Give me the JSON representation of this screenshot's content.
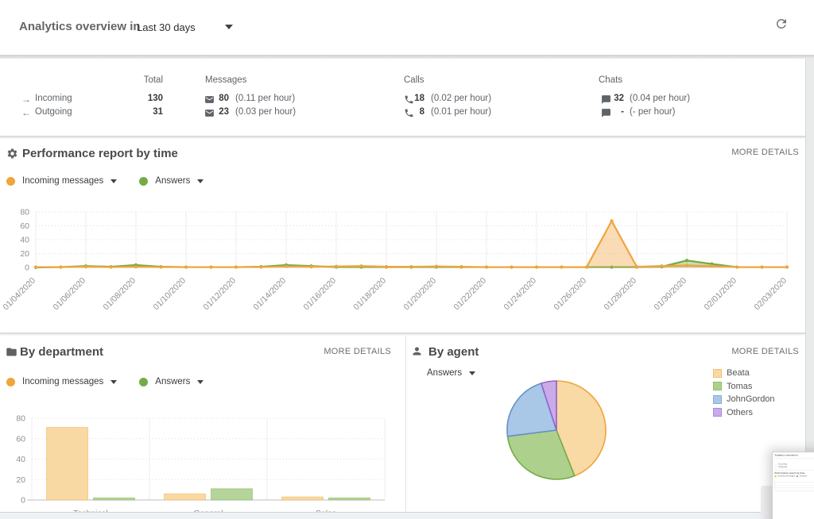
{
  "header": {
    "title": "Analytics overview in",
    "range_selector": {
      "value": "Last 30 days"
    },
    "refresh_icon": "refresh"
  },
  "stats": {
    "columns": {
      "total": "Total",
      "messages": "Messages",
      "calls": "Calls",
      "chats": "Chats"
    },
    "rows": [
      {
        "arrow": "→",
        "label": "Incoming",
        "total": "130",
        "messages": "80",
        "messages_rate": "(0.11 per hour)",
        "calls": "18",
        "calls_rate": "(0.02 per hour)",
        "chats": "32",
        "chats_rate": "(0.04 per hour)"
      },
      {
        "arrow": "←",
        "label": "Outgoing",
        "total": "31",
        "messages": "23",
        "messages_rate": "(0.03 per hour)",
        "calls": "8",
        "calls_rate": "(0.01 per hour)",
        "chats": "-",
        "chats_rate": "(- per hour)"
      }
    ]
  },
  "performance": {
    "title": "Performance report by time",
    "more_details": "MORE DETAILS",
    "legend": [
      {
        "label": "Incoming messages",
        "color": "#f0a43c"
      },
      {
        "label": "Answers",
        "color": "#74ab47"
      }
    ]
  },
  "by_department": {
    "title": "By department",
    "more_details": "MORE DETAILS",
    "legend": [
      {
        "label": "Incoming messages",
        "color": "#f0a43c"
      },
      {
        "label": "Answers",
        "color": "#74ab47"
      }
    ]
  },
  "by_agent": {
    "title": "By agent",
    "more_details": "MORE DETAILS",
    "filter_label": "Answers"
  },
  "chart_data": [
    {
      "id": "performance_by_time",
      "type": "area",
      "title": "Performance report by time",
      "x": [
        "01/04/2020",
        "01/05/2020",
        "01/06/2020",
        "01/07/2020",
        "01/08/2020",
        "01/09/2020",
        "01/10/2020",
        "01/11/2020",
        "01/12/2020",
        "01/13/2020",
        "01/14/2020",
        "01/15/2020",
        "01/16/2020",
        "01/17/2020",
        "01/18/2020",
        "01/19/2020",
        "01/20/2020",
        "01/21/2020",
        "01/22/2020",
        "01/23/2020",
        "01/24/2020",
        "01/25/2020",
        "01/26/2020",
        "01/27/2020",
        "01/28/2020",
        "01/29/2020",
        "01/30/2020",
        "01/31/2020",
        "02/01/2020",
        "02/02/2020",
        "02/03/2020"
      ],
      "label_every": 2,
      "ylim": [
        0,
        80
      ],
      "yticks": [
        0,
        20,
        40,
        60,
        80
      ],
      "grid": true,
      "legend_position": "top-left",
      "series": [
        {
          "name": "Incoming messages",
          "color": "#f0a43c",
          "values": [
            0.5,
            0.5,
            1,
            0.5,
            1,
            0.5,
            0.5,
            0.5,
            0.5,
            0.5,
            1.5,
            1,
            1.5,
            2,
            1,
            1,
            1.5,
            1,
            0.5,
            0.5,
            0.5,
            0.5,
            0.5,
            67,
            1,
            2,
            3,
            2,
            0.5,
            0.5,
            0.5
          ]
        },
        {
          "name": "Answers",
          "color": "#74ab47",
          "values": [
            0,
            0.5,
            2,
            1,
            3.5,
            1,
            0.5,
            0.5,
            0.5,
            1,
            3.5,
            2,
            0.5,
            0.5,
            0.5,
            0.5,
            0.5,
            0.5,
            0.5,
            0.5,
            0.5,
            0.5,
            0.5,
            0.5,
            0.5,
            1,
            10,
            5,
            0.5,
            0.5,
            0.5
          ]
        }
      ]
    },
    {
      "id": "by_department",
      "type": "bar",
      "title": "By department",
      "categories": [
        "Technical",
        "General",
        "Sales"
      ],
      "ylim": [
        0,
        80
      ],
      "yticks": [
        0,
        20,
        40,
        60,
        80
      ],
      "series": [
        {
          "name": "Incoming messages",
          "color": "#f0a43c",
          "fill": "#f8d9a4",
          "values": [
            71,
            6,
            3
          ]
        },
        {
          "name": "Answers",
          "color": "#74ab47",
          "fill": "#b5d49a",
          "values": [
            2,
            11,
            2
          ]
        }
      ]
    },
    {
      "id": "by_agent",
      "type": "pie",
      "title": "By agent",
      "metric": "Answers",
      "labels": [
        "Beata",
        "Tomas",
        "JohnGordon",
        "Others"
      ],
      "values": [
        44,
        29,
        22,
        5
      ],
      "unit": "percent_estimate",
      "legend_position": "top-right",
      "colors": [
        {
          "stroke": "#f0a43c",
          "fill": "#f9d9a4"
        },
        {
          "stroke": "#74ab47",
          "fill": "#aed08d"
        },
        {
          "stroke": "#6391c9",
          "fill": "#a9c7e7"
        },
        {
          "stroke": "#9065cc",
          "fill": "#c9abe9"
        }
      ]
    }
  ]
}
